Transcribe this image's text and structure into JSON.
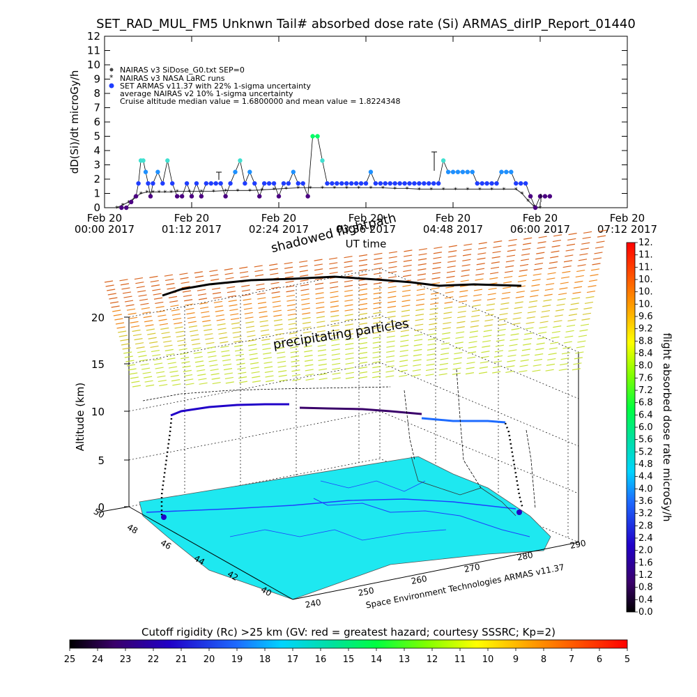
{
  "chart_data": [
    {
      "type": "scatter",
      "title": "SET_RAD_MUL_FM5 Unknwn Tail#  absorbed dose rate (Si) ARMAS_dirIP_Report_01440",
      "ylabel": "dD(Si)/dt microGy/h",
      "xlabel": "UT time",
      "ylim": [
        0,
        12
      ],
      "y_ticks": [
        "0",
        "1",
        "2",
        "3",
        "4",
        "5",
        "6",
        "7",
        "8",
        "9",
        "10",
        "11",
        "12"
      ],
      "x_ticks": [
        {
          "date": "Feb 20",
          "time": "00:00 2017"
        },
        {
          "date": "Feb 20",
          "time": "01:12 2017"
        },
        {
          "date": "Feb 20",
          "time": "02:24 2017"
        },
        {
          "date": "Feb 20",
          "time": "03:36 2017"
        },
        {
          "date": "Feb 20",
          "time": "04:48 2017"
        },
        {
          "date": "Feb 20",
          "time": "06:00 2017"
        },
        {
          "date": "Feb 20",
          "time": "07:12 2017"
        }
      ],
      "legend": [
        "NAIRAS v3 SiDose_G0.txt SEP=0",
        "NAIRAS v3 NASA LaRC runs",
        "SET ARMAS v11.37 with 22% 1-sigma uncertainty",
        "average NAIRAS v2 10% 1-sigma uncertainty",
        "Cruise altitude median value = 1.6800000 and mean value = 1.8224348"
      ],
      "annotations": [
        "shadowed flightpath"
      ],
      "series": [
        {
          "name": "NAIRAS v3 NASA LaRC runs",
          "x_minutes": [
            10,
            15,
            20,
            25,
            30,
            35,
            40,
            45,
            50,
            55,
            60,
            70,
            80,
            90,
            100,
            110,
            120,
            130,
            140,
            150,
            160,
            170,
            180,
            190,
            200,
            210,
            220,
            230,
            240,
            250,
            260,
            270,
            280,
            290,
            300,
            310,
            320,
            330,
            340,
            345,
            350,
            355,
            360
          ],
          "values": [
            0.0,
            0.2,
            0.4,
            0.7,
            1.0,
            1.1,
            1.1,
            1.1,
            1.1,
            1.1,
            1.15,
            1.15,
            1.15,
            1.15,
            1.2,
            1.2,
            1.2,
            1.25,
            1.3,
            1.35,
            1.4,
            1.4,
            1.4,
            1.4,
            1.4,
            1.4,
            1.4,
            1.4,
            1.35,
            1.35,
            1.3,
            1.3,
            1.3,
            1.3,
            1.3,
            1.3,
            1.3,
            1.3,
            1.3,
            1.0,
            0.5,
            0.1,
            0.0
          ]
        },
        {
          "name": "SET ARMAS v11.37 with 22% 1-sigma uncertainty",
          "x_minutes": [
            14,
            18,
            22,
            26,
            28,
            30,
            32,
            34,
            36,
            38,
            40,
            44,
            48,
            52,
            56,
            60,
            64,
            68,
            72,
            76,
            80,
            84,
            88,
            92,
            96,
            100,
            104,
            108,
            112,
            116,
            120,
            124,
            128,
            132,
            136,
            140,
            144,
            148,
            152,
            156,
            160,
            164,
            168,
            172,
            176,
            180,
            184,
            188,
            192,
            196,
            200,
            204,
            208,
            212,
            216,
            220,
            224,
            228,
            232,
            236,
            240,
            244,
            248,
            252,
            256,
            260,
            264,
            268,
            272,
            276,
            280,
            284,
            288,
            292,
            296,
            300,
            304,
            308,
            312,
            316,
            320,
            324,
            328,
            332,
            336,
            340,
            344,
            348,
            352,
            356,
            360,
            364,
            368
          ],
          "values": [
            0.0,
            0.0,
            0.4,
            0.8,
            1.7,
            3.3,
            3.3,
            2.5,
            1.7,
            0.8,
            1.7,
            2.5,
            1.7,
            3.3,
            1.7,
            0.8,
            0.8,
            1.7,
            0.8,
            1.7,
            0.8,
            1.7,
            1.7,
            1.7,
            1.7,
            0.8,
            1.7,
            2.5,
            3.3,
            1.7,
            2.5,
            1.7,
            0.8,
            1.7,
            1.7,
            1.7,
            0.8,
            1.7,
            1.7,
            2.5,
            1.7,
            1.7,
            0.8,
            5.0,
            5.0,
            3.3,
            1.7,
            1.7,
            1.7,
            1.7,
            1.7,
            1.7,
            1.7,
            1.7,
            1.7,
            2.5,
            1.7,
            1.7,
            1.7,
            1.7,
            1.7,
            1.7,
            1.7,
            1.7,
            1.7,
            1.7,
            1.7,
            1.7,
            1.7,
            1.7,
            3.3,
            2.5,
            2.5,
            2.5,
            2.5,
            2.5,
            2.5,
            1.7,
            1.7,
            1.7,
            1.7,
            1.7,
            2.5,
            2.5,
            2.5,
            1.7,
            1.7,
            1.7,
            0.8,
            0.0,
            0.8,
            0.8,
            0.8
          ]
        }
      ]
    },
    {
      "type": "scatter",
      "subtype": "3d-flightpath",
      "zlabel": "Altitude (km)",
      "z_ticks": [
        "0",
        "5",
        "10",
        "15",
        "20"
      ],
      "latitude_ticks": [
        "40",
        "42",
        "44",
        "46",
        "48",
        "50"
      ],
      "longitude_ticks": [
        "240",
        "250",
        "260",
        "270",
        "280",
        "290"
      ],
      "labels": [
        "precipitating particles"
      ],
      "credit": "Space Environment Technologies ARMAS v11.37",
      "right_colorbar": {
        "label": "flight absorbed dose rate microGy/h",
        "ticks": [
          "0.0",
          "0.4",
          "0.8",
          "1.2",
          "1.6",
          "2.0",
          "2.4",
          "2.8",
          "3.2",
          "3.6",
          "4.0",
          "4.4",
          "4.8",
          "5.2",
          "5.6",
          "6.0",
          "6.4",
          "6.8",
          "7.2",
          "7.6",
          "8.0",
          "8.4",
          "8.8",
          "9.2",
          "9.6",
          "10.",
          "10.",
          "10.",
          "11.",
          "11.",
          "12."
        ]
      },
      "bottom_colorbar": {
        "label": "Cutoff rigidity (Rc) >25 km (GV: red = greatest hazard; courtesy SSSRC; Kp=2)",
        "ticks": [
          "25",
          "24",
          "23",
          "22",
          "21",
          "20",
          "19",
          "18",
          "17",
          "16",
          "15",
          "14",
          "13",
          "12",
          "11",
          "10",
          "9",
          "8",
          "7",
          "6",
          "5"
        ]
      }
    }
  ],
  "colors": {
    "nairas": "#444444",
    "armas_low": "#4b0082",
    "armas_mid": "#1f3dff",
    "armas_blue2": "#1e90ff",
    "armas_cyan": "#40e0d0",
    "armas_green": "#00ff66",
    "surface": "#1ee8f0",
    "surface_texture": "#1f3dff"
  }
}
